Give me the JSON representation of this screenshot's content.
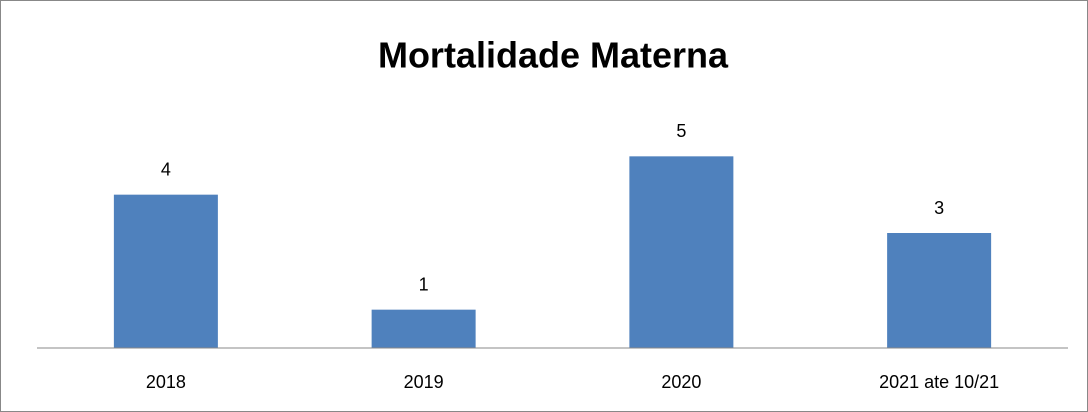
{
  "chart_data": {
    "type": "bar",
    "title": "Mortalidade Materna",
    "categories": [
      "2018",
      "2019",
      "2020",
      "2021 ate 10/21"
    ],
    "values": [
      4,
      1,
      5,
      3
    ],
    "color": "#4f81bd",
    "ylim": [
      0,
      6
    ]
  }
}
